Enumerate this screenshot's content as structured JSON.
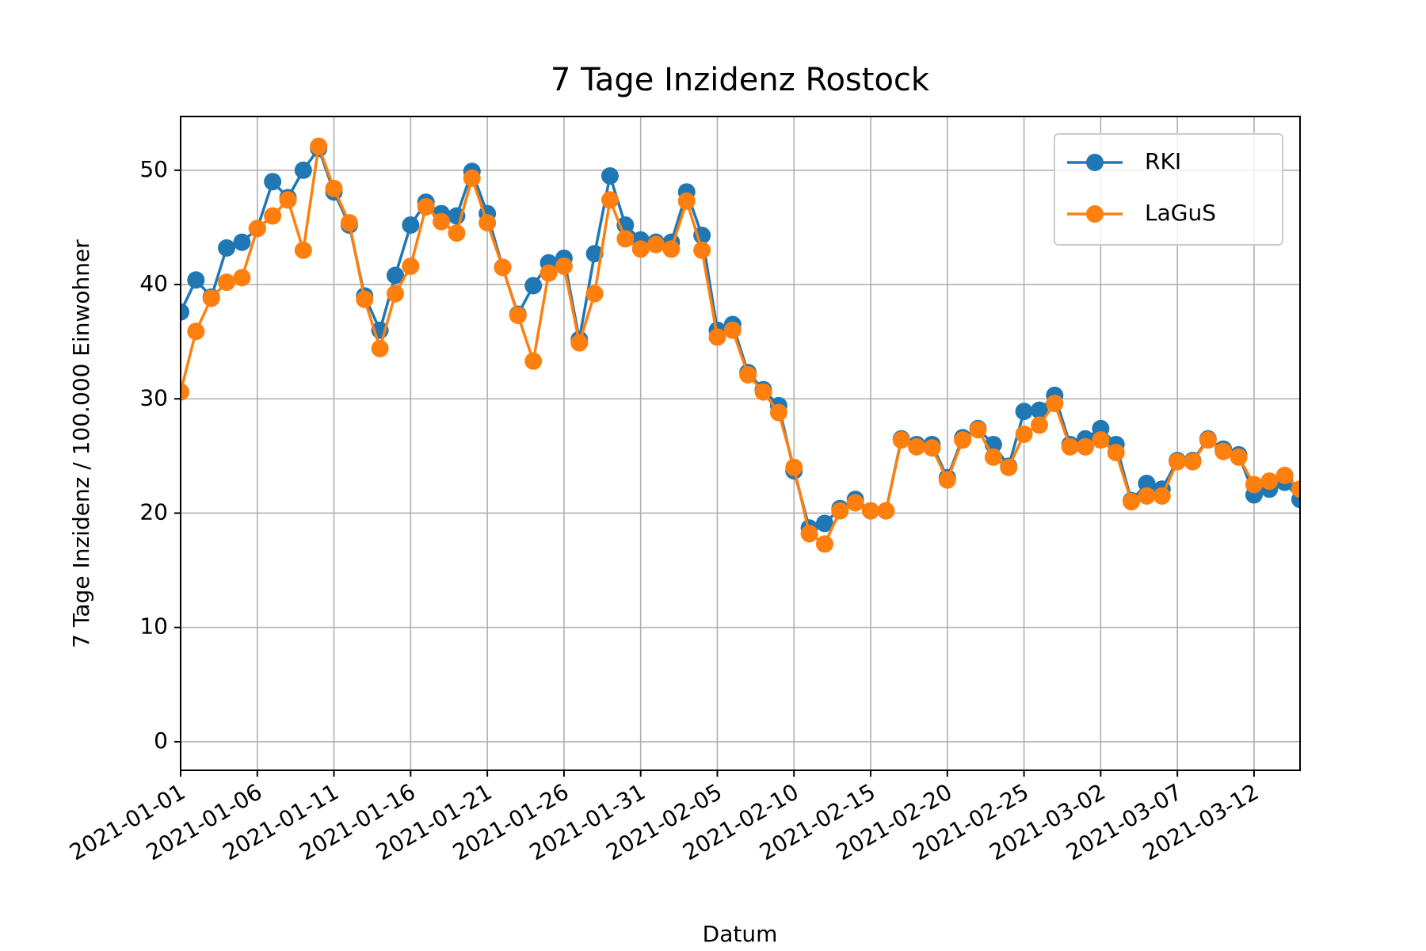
{
  "chart_data": {
    "type": "line",
    "title": "7 Tage Inzidenz Rostock",
    "xlabel": "Datum",
    "ylabel": "7 Tage Inzidenz / 100.000 Einwohner",
    "x": [
      "2021-01-01",
      "2021-01-02",
      "2021-01-03",
      "2021-01-04",
      "2021-01-05",
      "2021-01-06",
      "2021-01-07",
      "2021-01-08",
      "2021-01-09",
      "2021-01-10",
      "2021-01-11",
      "2021-01-12",
      "2021-01-13",
      "2021-01-14",
      "2021-01-15",
      "2021-01-16",
      "2021-01-17",
      "2021-01-18",
      "2021-01-19",
      "2021-01-20",
      "2021-01-21",
      "2021-01-22",
      "2021-01-23",
      "2021-01-24",
      "2021-01-25",
      "2021-01-26",
      "2021-01-27",
      "2021-01-28",
      "2021-01-29",
      "2021-01-30",
      "2021-01-31",
      "2021-02-01",
      "2021-02-02",
      "2021-02-03",
      "2021-02-04",
      "2021-02-05",
      "2021-02-06",
      "2021-02-07",
      "2021-02-08",
      "2021-02-09",
      "2021-02-10",
      "2021-02-11",
      "2021-02-12",
      "2021-02-13",
      "2021-02-14",
      "2021-02-15",
      "2021-02-16",
      "2021-02-17",
      "2021-02-18",
      "2021-02-19",
      "2021-02-20",
      "2021-02-21",
      "2021-02-22",
      "2021-02-23",
      "2021-02-24",
      "2021-02-25",
      "2021-02-26",
      "2021-02-27",
      "2021-02-28",
      "2021-03-01",
      "2021-03-02",
      "2021-03-03",
      "2021-03-04",
      "2021-03-05",
      "2021-03-06",
      "2021-03-07",
      "2021-03-08",
      "2021-03-09",
      "2021-03-10",
      "2021-03-11",
      "2021-03-12",
      "2021-03-13",
      "2021-03-14",
      "2021-03-15"
    ],
    "series": [
      {
        "name": "RKI",
        "color": "#1f77b4",
        "values": [
          37.6,
          40.4,
          38.9,
          43.2,
          43.7,
          44.9,
          49.0,
          47.6,
          50.0,
          51.9,
          48.1,
          45.2,
          39.0,
          36.0,
          40.8,
          45.2,
          47.2,
          46.2,
          46.0,
          49.9,
          46.2,
          41.5,
          37.4,
          39.9,
          41.9,
          42.3,
          35.2,
          42.7,
          49.5,
          45.2,
          43.9,
          43.7,
          43.7,
          48.1,
          44.3,
          36.0,
          36.5,
          32.3,
          30.8,
          29.4,
          23.7,
          18.7,
          19.1,
          20.4,
          21.2,
          20.2,
          20.2,
          26.5,
          26.0,
          26.0,
          23.1,
          26.6,
          27.4,
          26.0,
          24.1,
          28.9,
          29.0,
          30.3,
          26.0,
          26.5,
          27.4,
          26.0,
          21.1,
          22.6,
          22.1,
          24.6,
          24.6,
          26.5,
          25.6,
          25.1,
          21.6,
          22.1,
          22.7,
          21.2
        ]
      },
      {
        "name": "LaGuS",
        "color": "#ff7f0e",
        "values": [
          30.6,
          35.9,
          38.8,
          40.2,
          40.6,
          44.9,
          46.0,
          47.4,
          43.0,
          52.1,
          48.4,
          45.4,
          38.7,
          34.4,
          39.2,
          41.6,
          46.8,
          45.5,
          44.5,
          49.3,
          45.4,
          41.5,
          37.3,
          33.3,
          41.0,
          41.6,
          34.9,
          39.2,
          47.4,
          44.0,
          43.1,
          43.5,
          43.1,
          47.3,
          43.0,
          35.4,
          36.0,
          32.1,
          30.6,
          28.8,
          24.0,
          18.2,
          17.3,
          20.2,
          20.9,
          20.2,
          20.2,
          26.4,
          25.8,
          25.7,
          22.9,
          26.4,
          27.3,
          24.9,
          24.0,
          26.9,
          27.7,
          29.6,
          25.8,
          25.8,
          26.4,
          25.3,
          21.0,
          21.5,
          21.5,
          24.5,
          24.5,
          26.4,
          25.4,
          24.9,
          22.5,
          22.8,
          23.3,
          22.1
        ]
      }
    ],
    "xlim": [
      "2021-01-01",
      "2021-03-15"
    ],
    "xticks": [
      "2021-01-01",
      "2021-01-06",
      "2021-01-11",
      "2021-01-16",
      "2021-01-21",
      "2021-01-26",
      "2021-01-31",
      "2021-02-05",
      "2021-02-10",
      "2021-02-15",
      "2021-02-20",
      "2021-02-25",
      "2021-03-02",
      "2021-03-07",
      "2021-03-12"
    ],
    "ylim": [
      -2.5,
      54.7
    ],
    "yticks": [
      0,
      10,
      20,
      30,
      40,
      50
    ],
    "grid": true,
    "legend": "upper right"
  }
}
